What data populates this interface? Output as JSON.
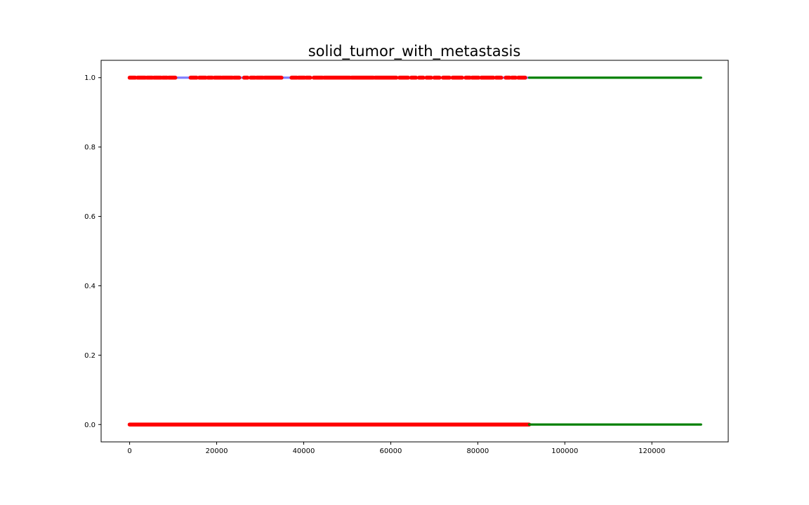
{
  "chart_data": {
    "type": "scatter",
    "title": "solid_tumor_with_metastasis",
    "xlabel": "",
    "ylabel": "",
    "xlim": [
      -6550,
      137550
    ],
    "ylim": [
      -0.05,
      1.05
    ],
    "x_ticks": [
      0,
      20000,
      40000,
      60000,
      80000,
      100000,
      120000
    ],
    "x_tick_labels": [
      "0",
      "20000",
      "40000",
      "60000",
      "80000",
      "100000",
      "120000"
    ],
    "y_ticks": [
      0.0,
      0.2,
      0.4,
      0.6,
      0.8,
      1.0
    ],
    "y_tick_labels": [
      "0.0",
      "0.2",
      "0.4",
      "0.6",
      "0.8",
      "1.0"
    ],
    "grid": false,
    "legend": false,
    "series": [
      {
        "color": "#0000ff",
        "opacity": 0.5,
        "marker_size": "small",
        "points": [
          {
            "x_start": 0,
            "x_end": 91800,
            "y": 1
          },
          {
            "x_start": 0,
            "x_end": 91800,
            "y": 0
          }
        ]
      },
      {
        "color": "#ff0000",
        "marker_size": "large",
        "points": [
          {
            "x_start": 0,
            "x_end": 91800,
            "y": 0
          }
        ],
        "clusters_at_y1": [
          [
            0,
            1300
          ],
          [
            1800,
            3600
          ],
          [
            4000,
            5200
          ],
          [
            5600,
            7200
          ],
          [
            7600,
            8600
          ],
          [
            9000,
            10500
          ],
          [
            14000,
            15400
          ],
          [
            16000,
            17500
          ],
          [
            18000,
            19000
          ],
          [
            19500,
            21000
          ],
          [
            21300,
            23600
          ],
          [
            24000,
            25200
          ],
          [
            26300,
            27100
          ],
          [
            27800,
            28800
          ],
          [
            29200,
            30600
          ],
          [
            31000,
            34900
          ],
          [
            37200,
            38400
          ],
          [
            38800,
            40200
          ],
          [
            40600,
            41500
          ],
          [
            42300,
            44300
          ],
          [
            44700,
            50600
          ],
          [
            51000,
            56000
          ],
          [
            56400,
            61300
          ],
          [
            62000,
            64000
          ],
          [
            64700,
            65800
          ],
          [
            66500,
            67500
          ],
          [
            68200,
            69300
          ],
          [
            70000,
            71200
          ],
          [
            72000,
            73500
          ],
          [
            74200,
            76400
          ],
          [
            77200,
            78200
          ],
          [
            78700,
            80200
          ],
          [
            80800,
            83600
          ],
          [
            84200,
            85400
          ],
          [
            86400,
            87300
          ],
          [
            87800,
            88700
          ],
          [
            89300,
            90900
          ]
        ]
      },
      {
        "color": "#008000",
        "marker_size": "small",
        "points": [
          {
            "x_start": 91800,
            "x_end": 131300,
            "y": 1
          },
          {
            "x_start": 91800,
            "x_end": 131300,
            "y": 0
          }
        ]
      }
    ]
  }
}
